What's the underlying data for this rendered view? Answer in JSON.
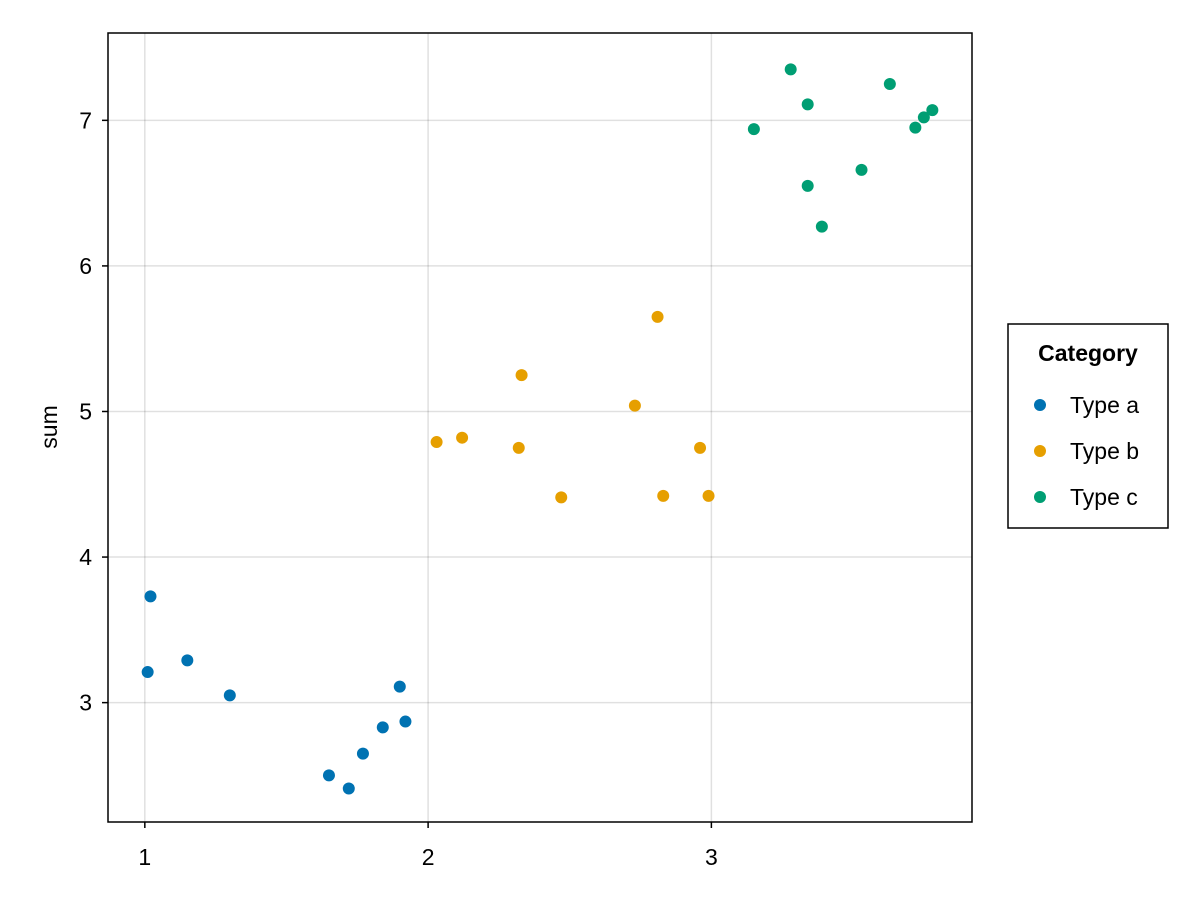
{
  "chart_data": {
    "type": "scatter",
    "title": "",
    "xlabel": "",
    "ylabel": "sum",
    "xlim": [
      0.87,
      3.92
    ],
    "ylim": [
      2.18,
      7.6
    ],
    "x_ticks": [
      1,
      2,
      3
    ],
    "y_ticks": [
      3,
      4,
      5,
      6,
      7
    ],
    "grid": true,
    "legend": {
      "title": "Category",
      "placement": "right"
    },
    "series": [
      {
        "name": "Type a",
        "color": "#0072B2",
        "points": [
          [
            1.01,
            3.21
          ],
          [
            1.02,
            3.73
          ],
          [
            1.15,
            3.29
          ],
          [
            1.3,
            3.05
          ],
          [
            1.65,
            2.5
          ],
          [
            1.72,
            2.41
          ],
          [
            1.77,
            2.65
          ],
          [
            1.84,
            2.83
          ],
          [
            1.9,
            3.11
          ],
          [
            1.92,
            2.87
          ]
        ]
      },
      {
        "name": "Type b",
        "color": "#E69F00",
        "points": [
          [
            2.03,
            4.79
          ],
          [
            2.12,
            4.82
          ],
          [
            2.32,
            4.75
          ],
          [
            2.33,
            5.25
          ],
          [
            2.47,
            4.41
          ],
          [
            2.73,
            5.04
          ],
          [
            2.81,
            5.65
          ],
          [
            2.83,
            4.42
          ],
          [
            2.96,
            4.75
          ],
          [
            2.99,
            4.42
          ]
        ]
      },
      {
        "name": "Type c",
        "color": "#009E73",
        "points": [
          [
            3.15,
            6.94
          ],
          [
            3.28,
            7.35
          ],
          [
            3.34,
            7.11
          ],
          [
            3.34,
            6.55
          ],
          [
            3.39,
            6.27
          ],
          [
            3.53,
            6.66
          ],
          [
            3.63,
            7.25
          ],
          [
            3.72,
            6.95
          ],
          [
            3.75,
            7.02
          ],
          [
            3.78,
            7.07
          ]
        ]
      }
    ]
  }
}
